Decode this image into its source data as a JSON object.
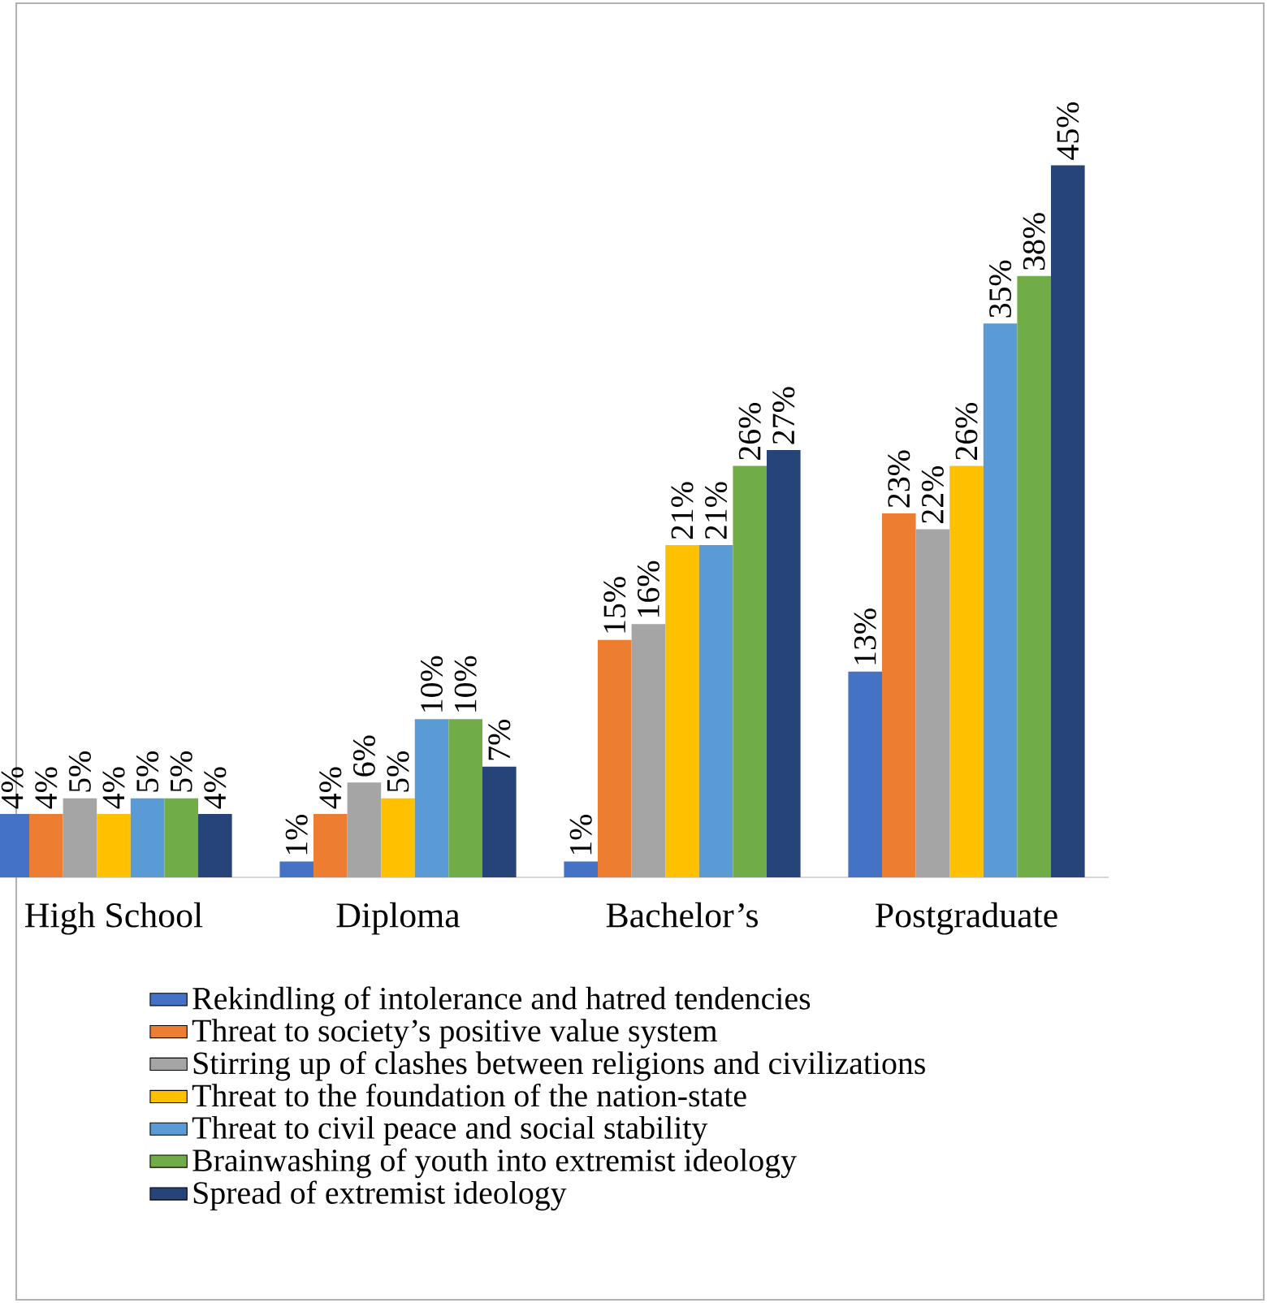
{
  "chart_data": {
    "type": "bar",
    "categories": [
      "High School",
      "Diploma",
      "Bachelor’s",
      "Postgraduate"
    ],
    "series": [
      {
        "name": "Rekindling of intolerance and hatred tendencies",
        "color": "#4472c4",
        "values": [
          4,
          1,
          1,
          13
        ],
        "value_labels": [
          "4%",
          "1%",
          "1%",
          "13%"
        ]
      },
      {
        "name": "Threat to society’s positive value system",
        "color": "#ed7d31",
        "values": [
          4,
          4,
          15,
          23
        ],
        "value_labels": [
          "4%",
          "4%",
          "15%",
          "23%"
        ]
      },
      {
        "name": "Stirring up of clashes between religions and civilizations",
        "color": "#a5a5a5",
        "values": [
          5,
          6,
          16,
          22
        ],
        "value_labels": [
          "5%",
          "6%",
          "16%",
          "22%"
        ]
      },
      {
        "name": "Threat to the foundation of the nation-state",
        "color": "#ffc000",
        "values": [
          4,
          5,
          21,
          26
        ],
        "value_labels": [
          "4%",
          "5%",
          "21%",
          "26%"
        ]
      },
      {
        "name": "Threat to civil peace and social stability",
        "color": "#5b9bd5",
        "values": [
          5,
          10,
          21,
          35
        ],
        "value_labels": [
          "5%",
          "10%",
          "21%",
          "35%"
        ]
      },
      {
        "name": "Brainwashing of youth into extremist ideology",
        "color": "#70ad47",
        "values": [
          5,
          10,
          26,
          38
        ],
        "value_labels": [
          "5%",
          "10%",
          "26%",
          "38%"
        ]
      },
      {
        "name": "Spread of extremist ideology",
        "color": "#264478",
        "values": [
          4,
          7,
          27,
          45
        ],
        "value_labels": [
          "4%",
          "7%",
          "27%",
          "45%"
        ]
      }
    ],
    "legend": "bottom"
  }
}
